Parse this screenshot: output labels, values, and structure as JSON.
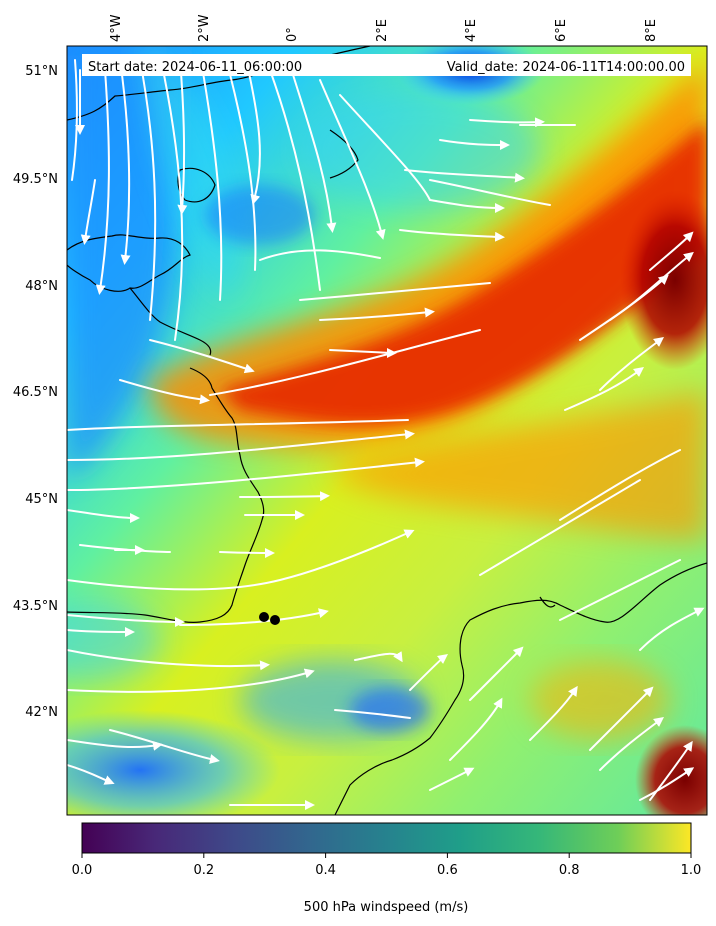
{
  "header": {
    "start_date": "Start date: 2024-06-11_06:00:00",
    "valid_date": "Valid_date: 2024-06-11T14:00:00.00"
  },
  "map": {
    "top_lon_labels": [
      "4°W",
      "2°W",
      "0°",
      "2°E",
      "4°E",
      "6°E",
      "8°E"
    ],
    "left_lat_labels": [
      "51°N",
      "49.5°N",
      "48°N",
      "46.5°N",
      "45°N",
      "43.5°N",
      "42°N"
    ],
    "markers": [
      {
        "name": "point-a",
        "lon": -0.3,
        "lat": 43.35
      },
      {
        "name": "point-b",
        "lon": -0.05,
        "lat": 43.3
      }
    ]
  },
  "colorbar": {
    "ticks": [
      "0.0",
      "0.2",
      "0.4",
      "0.6",
      "0.8",
      "1.0"
    ],
    "label": "500 hPa windspeed (m/s)",
    "colormap": "viridis"
  },
  "colors": {
    "jet_core": "#e02000",
    "background_field": "#c8f000",
    "low_speed": "#1060ff",
    "streamline": "#ffffff",
    "coastline": "#000000"
  }
}
